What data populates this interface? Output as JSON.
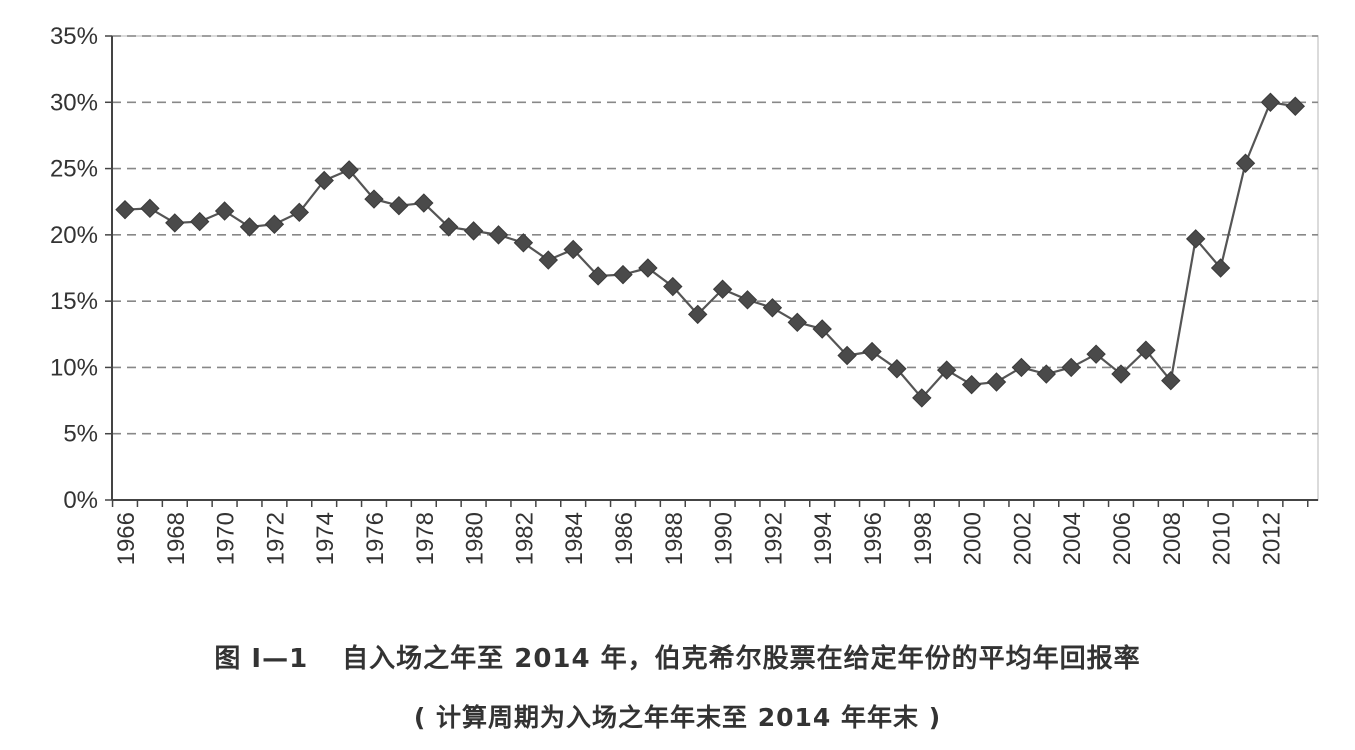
{
  "chart_data": {
    "type": "line",
    "title": "",
    "xlabel": "",
    "ylabel": "",
    "x": [
      1966,
      1967,
      1968,
      1969,
      1970,
      1971,
      1972,
      1973,
      1974,
      1975,
      1976,
      1977,
      1978,
      1979,
      1980,
      1981,
      1982,
      1983,
      1984,
      1985,
      1986,
      1987,
      1988,
      1989,
      1990,
      1991,
      1992,
      1993,
      1994,
      1995,
      1996,
      1997,
      1998,
      1999,
      2000,
      2001,
      2002,
      2003,
      2004,
      2005,
      2006,
      2007,
      2008,
      2009,
      2010,
      2011,
      2012,
      2013
    ],
    "x_tick_labels": [
      "1966",
      "1968",
      "1970",
      "1972",
      "1974",
      "1976",
      "1978",
      "1980",
      "1982",
      "1984",
      "1986",
      "1988",
      "1990",
      "1992",
      "1994",
      "1996",
      "1998",
      "2000",
      "2002",
      "2004",
      "2006",
      "2008",
      "2010",
      "2012"
    ],
    "series": [
      {
        "values": [
          21.9,
          22.0,
          20.9,
          21.0,
          21.8,
          20.6,
          20.8,
          21.7,
          24.1,
          24.9,
          22.7,
          22.2,
          22.4,
          20.6,
          20.3,
          20.0,
          19.4,
          18.1,
          18.9,
          16.9,
          17.0,
          17.5,
          16.1,
          14.0,
          15.9,
          15.1,
          14.5,
          13.4,
          12.9,
          10.9,
          11.2,
          9.9,
          7.7,
          9.8,
          8.7,
          8.9,
          10.0,
          9.5,
          10.0,
          11.0,
          9.5,
          11.3,
          9.0,
          19.7,
          17.5,
          25.4,
          30.0,
          29.7
        ]
      }
    ],
    "ylim": [
      0,
      35
    ],
    "y_ticks": [
      {
        "value": 0,
        "label": "0%"
      },
      {
        "value": 5,
        "label": "5%"
      },
      {
        "value": 10,
        "label": "10%"
      },
      {
        "value": 15,
        "label": "15%"
      },
      {
        "value": 20,
        "label": "20%"
      },
      {
        "value": 25,
        "label": "25%"
      },
      {
        "value": 30,
        "label": "30%"
      },
      {
        "value": 35,
        "label": "35%"
      }
    ],
    "grid": "horizontal-dashed",
    "legend": "none",
    "colors": {
      "line": "#555555",
      "marker": "#4a4a4a",
      "grid": "#888888",
      "axis": "#444444",
      "frame": "#cfcfcf"
    }
  },
  "caption": {
    "figure_number": "图 I—1",
    "line1": "自入场之年至 2014 年，伯克希尔股票在给定年份的平均年回报率",
    "line2": "( 计算周期为入场之年年末至 2014 年年末 )"
  }
}
